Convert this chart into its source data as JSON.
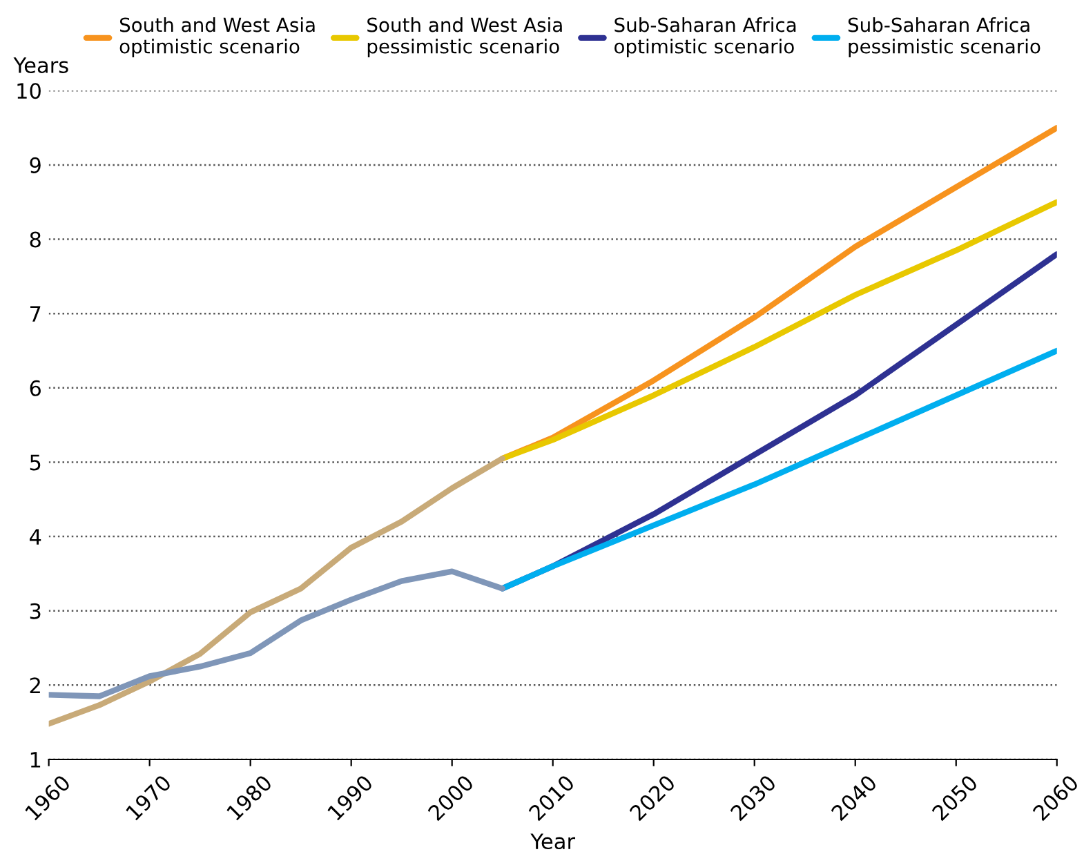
{
  "chart_data": {
    "type": "line",
    "xlabel": "Year",
    "ylabel": "Years",
    "xlim": [
      1960,
      2060
    ],
    "xticks": [
      1960,
      1970,
      1980,
      1990,
      2000,
      2010,
      2020,
      2030,
      2040,
      2050,
      2060
    ],
    "ylim": [
      1,
      10
    ],
    "yticks": [
      1,
      2,
      3,
      4,
      5,
      6,
      7,
      8,
      9,
      10
    ],
    "grid": "y",
    "legend": "top",
    "line_style": "solid",
    "series": [
      {
        "name": "South and West Asia\noptimistic scenario",
        "color": "#f7931e",
        "x": [
          2005,
          2010,
          2020,
          2030,
          2040,
          2050,
          2060
        ],
        "values": [
          5.05,
          5.33,
          6.1,
          6.95,
          7.9,
          8.7,
          9.5
        ]
      },
      {
        "name": "South and West Asia\npessimistic scenario",
        "color": "#e8c800",
        "x": [
          2005,
          2010,
          2020,
          2030,
          2040,
          2050,
          2060
        ],
        "values": [
          5.05,
          5.3,
          5.9,
          6.55,
          7.25,
          7.85,
          8.5
        ]
      },
      {
        "name": "Sub-Saharan Africa\noptimistic scenario",
        "color": "#2e3192",
        "x": [
          2005,
          2010,
          2020,
          2030,
          2040,
          2050,
          2060
        ],
        "values": [
          3.3,
          3.6,
          4.3,
          5.1,
          5.9,
          6.85,
          7.8
        ]
      },
      {
        "name": "Sub-Saharan Africa\npessimistic scenario",
        "color": "#00aeef",
        "x": [
          2005,
          2010,
          2020,
          2030,
          2040,
          2050,
          2060
        ],
        "values": [
          3.3,
          3.6,
          4.15,
          4.7,
          5.3,
          5.9,
          6.5
        ]
      },
      {
        "color": "#c8aa78",
        "x": [
          1960,
          1965,
          1970,
          1975,
          1980,
          1985,
          1990,
          1995,
          2000,
          2005
        ],
        "values": [
          1.48,
          1.73,
          2.05,
          2.42,
          2.98,
          3.3,
          3.85,
          4.2,
          4.65,
          5.05
        ]
      },
      {
        "color": "#7f96b8",
        "x": [
          1960,
          1965,
          1970,
          1975,
          1980,
          1985,
          1990,
          1995,
          2000,
          2005
        ],
        "values": [
          1.87,
          1.85,
          2.12,
          2.25,
          2.43,
          2.87,
          3.15,
          3.4,
          3.53,
          3.3
        ]
      }
    ]
  }
}
